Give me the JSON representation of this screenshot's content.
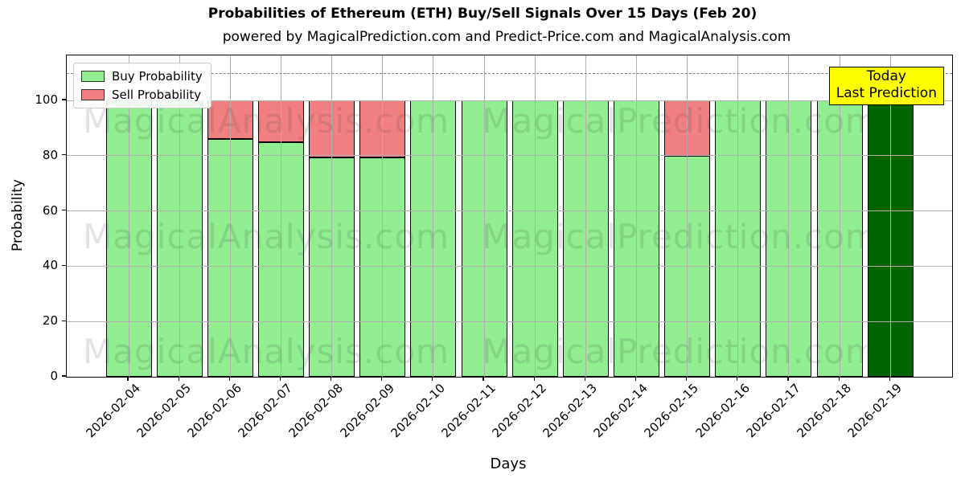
{
  "header": {
    "title": "Probabilities of Ethereum (ETH) Buy/Sell Signals Over 15 Days (Feb 20)",
    "subtitle": "powered by MagicalPrediction.com and Predict-Price.com and MagicalAnalysis.com"
  },
  "legend": {
    "buy_label": "Buy Probability",
    "sell_label": "Sell Probability"
  },
  "annotation": {
    "line1": "Today",
    "line2": "Last Prediction",
    "bg_color": "#ffff00"
  },
  "watermarks": {
    "left_text": "MagicalAnalysis.com",
    "right_text": "MagicalPrediction.com"
  },
  "colors": {
    "buy": "#90ee90",
    "sell": "#f08080",
    "today_bar": "#006400",
    "grid": "#b0b0b0",
    "dashed_line": "#7f7f7f",
    "bar_edge": "#000000"
  },
  "chart_data": {
    "type": "bar",
    "stacked": true,
    "title": "Probabilities of Ethereum (ETH) Buy/Sell Signals Over 15 Days (Feb 20)",
    "xlabel": "Days",
    "ylabel": "Probability",
    "categories": [
      "2026-02-04",
      "2026-02-05",
      "2026-02-06",
      "2026-02-07",
      "2026-02-08",
      "2026-02-09",
      "2026-02-10",
      "2026-02-11",
      "2026-02-12",
      "2026-02-13",
      "2026-02-14",
      "2026-02-15",
      "2026-02-16",
      "2026-02-17",
      "2026-02-18",
      "2026-02-19"
    ],
    "series": [
      {
        "name": "Buy Probability",
        "color": "#90ee90",
        "values": [
          100,
          100,
          86,
          85,
          79.5,
          79.5,
          100,
          100,
          100,
          100,
          100,
          80,
          100,
          100,
          100,
          100
        ]
      },
      {
        "name": "Sell Probability",
        "color": "#f08080",
        "values": [
          0,
          0,
          14,
          15,
          20.5,
          20.5,
          0,
          0,
          0,
          0,
          0,
          20,
          0,
          0,
          0,
          0
        ]
      }
    ],
    "today_index": 15,
    "yticks": [
      0,
      20,
      40,
      60,
      80,
      100
    ],
    "ylim": [
      0,
      116.3
    ],
    "dashed_line_y": 110,
    "grid": true,
    "legend_position": "upper left"
  }
}
